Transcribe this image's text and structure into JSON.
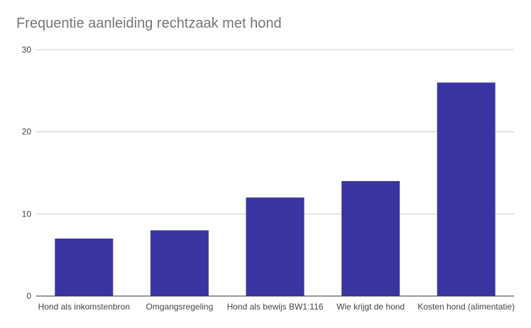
{
  "chart_data": {
    "type": "bar",
    "title": "Frequentie aanleiding rechtzaak met hond",
    "xlabel": "",
    "ylabel": "",
    "categories": [
      "Hond als inkomstenbron",
      "Omgangsregeling",
      "Hond als bewijs BW1:116",
      "Wie krijgt de hond",
      "Kosten hond (alimentatie)"
    ],
    "values": [
      7,
      8,
      12,
      14,
      26
    ],
    "ylim": [
      0,
      30
    ],
    "yticks": [
      0,
      10,
      20,
      30
    ],
    "grid": true,
    "legend": "none",
    "bar_color": "#3835a3"
  }
}
